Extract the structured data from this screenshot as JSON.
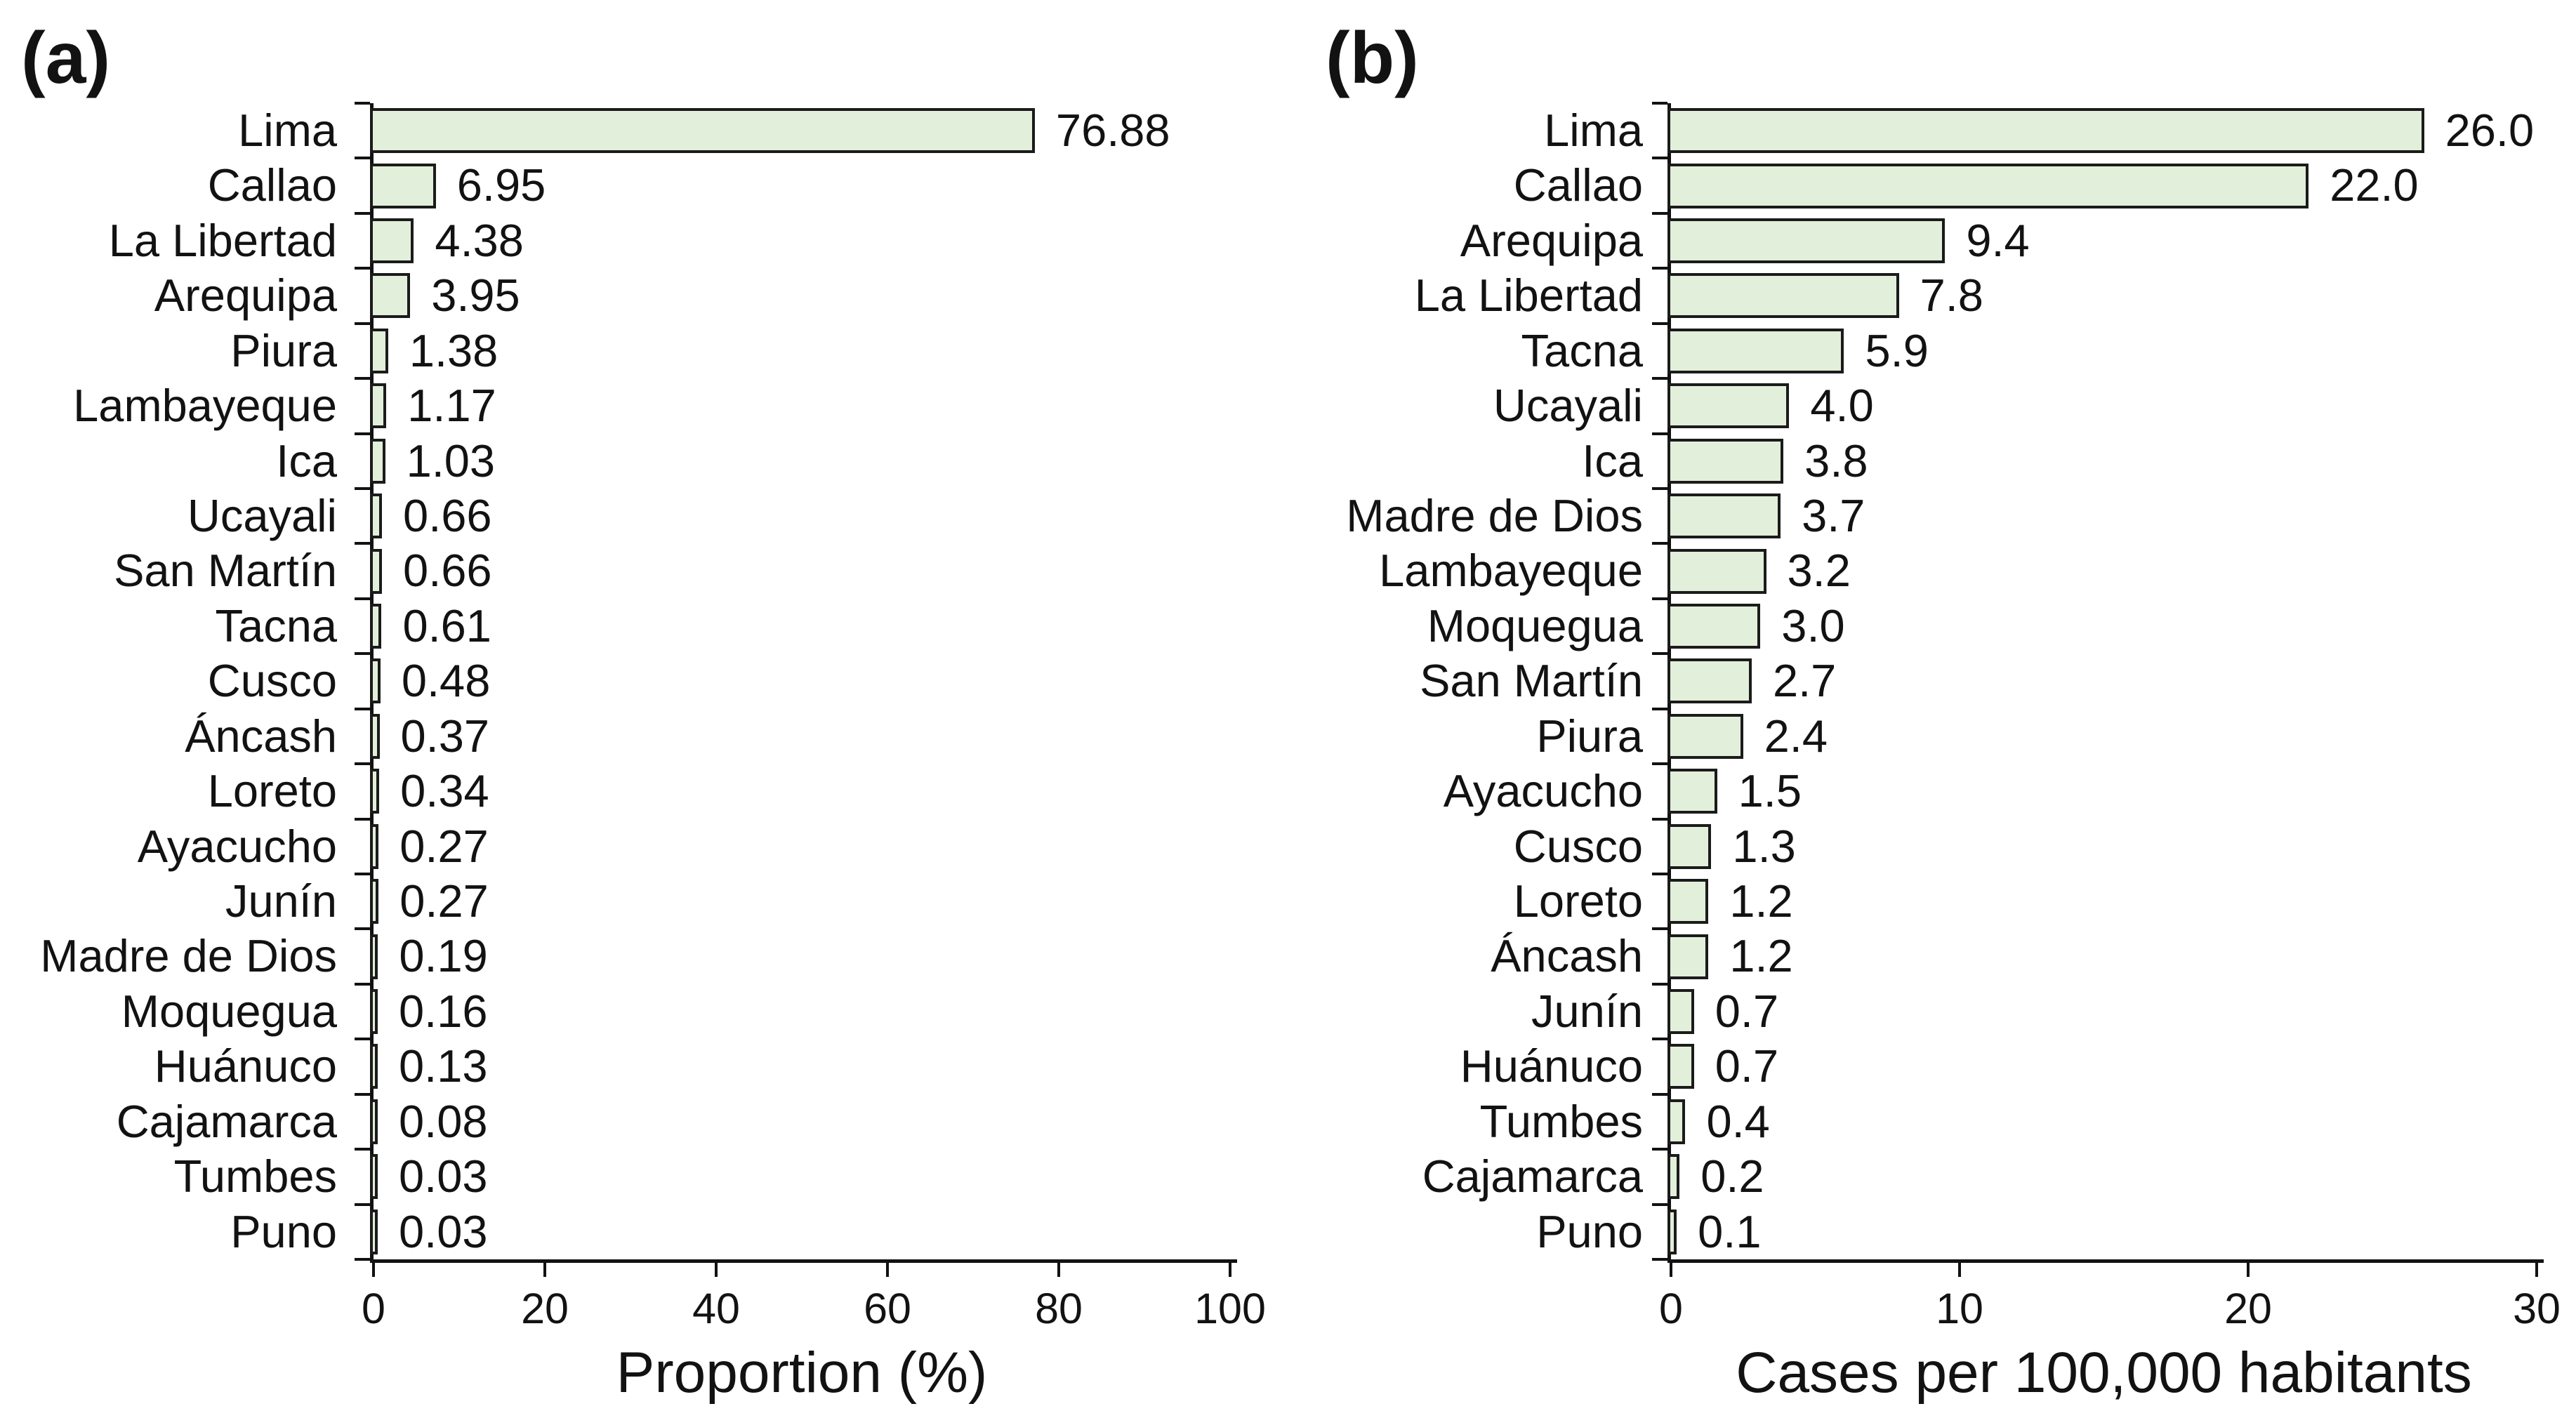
{
  "figure": {
    "background": "#ffffff",
    "bar_fill": "#e2efda",
    "bar_border": "#1b1b1b",
    "text_color": "#121212"
  },
  "chart_data": [
    {
      "type": "bar",
      "orientation": "horizontal",
      "panel_label": "(a)",
      "xlabel": "Proportion (%)",
      "xlim": [
        0,
        100
      ],
      "xticks": [
        0,
        20,
        40,
        60,
        80,
        100
      ],
      "grid": false,
      "legend": false,
      "categories": [
        "Lima",
        "Callao",
        "La Libertad",
        "Arequipa",
        "Piura",
        "Lambayeque",
        "Ica",
        "Ucayali",
        "San Martín",
        "Tacna",
        "Cusco",
        "Áncash",
        "Loreto",
        "Ayacucho",
        "Junín",
        "Madre de Dios",
        "Moquegua",
        "Huánuco",
        "Cajamarca",
        "Tumbes",
        "Puno"
      ],
      "values": [
        76.88,
        6.95,
        4.38,
        3.95,
        1.38,
        1.17,
        1.03,
        0.66,
        0.66,
        0.61,
        0.48,
        0.37,
        0.34,
        0.27,
        0.27,
        0.19,
        0.16,
        0.13,
        0.08,
        0.03,
        0.03
      ],
      "value_labels": [
        "76.88",
        "6.95",
        "4.38",
        "3.95",
        "1.38",
        "1.17",
        "1.03",
        "0.66",
        "0.66",
        "0.61",
        "0.48",
        "0.37",
        "0.34",
        "0.27",
        "0.27",
        "0.19",
        "0.16",
        "0.13",
        "0.08",
        "0.03",
        "0.03"
      ]
    },
    {
      "type": "bar",
      "orientation": "horizontal",
      "panel_label": "(b)",
      "xlabel": "Cases per 100,000 habitants",
      "xlim": [
        0,
        30
      ],
      "xticks": [
        0,
        10,
        20,
        30
      ],
      "grid": false,
      "legend": false,
      "categories": [
        "Lima",
        "Callao",
        "Arequipa",
        "La Libertad",
        "Tacna",
        "Ucayali",
        "Ica",
        "Madre de Dios",
        "Lambayeque",
        "Moquegua",
        "San Martín",
        "Piura",
        "Ayacucho",
        "Cusco",
        "Loreto",
        "Áncash",
        "Junín",
        "Huánuco",
        "Tumbes",
        "Cajamarca",
        "Puno"
      ],
      "values": [
        26.0,
        22.0,
        9.4,
        7.8,
        5.9,
        4.0,
        3.8,
        3.7,
        3.2,
        3.0,
        2.7,
        2.4,
        1.5,
        1.3,
        1.2,
        1.2,
        0.7,
        0.7,
        0.4,
        0.2,
        0.1
      ],
      "value_labels": [
        "26.0",
        "22.0",
        "9.4",
        "7.8",
        "5.9",
        "4.0",
        "3.8",
        "3.7",
        "3.2",
        "3.0",
        "2.7",
        "2.4",
        "1.5",
        "1.3",
        "1.2",
        "1.2",
        "0.7",
        "0.7",
        "0.4",
        "0.2",
        "0.1"
      ]
    }
  ]
}
